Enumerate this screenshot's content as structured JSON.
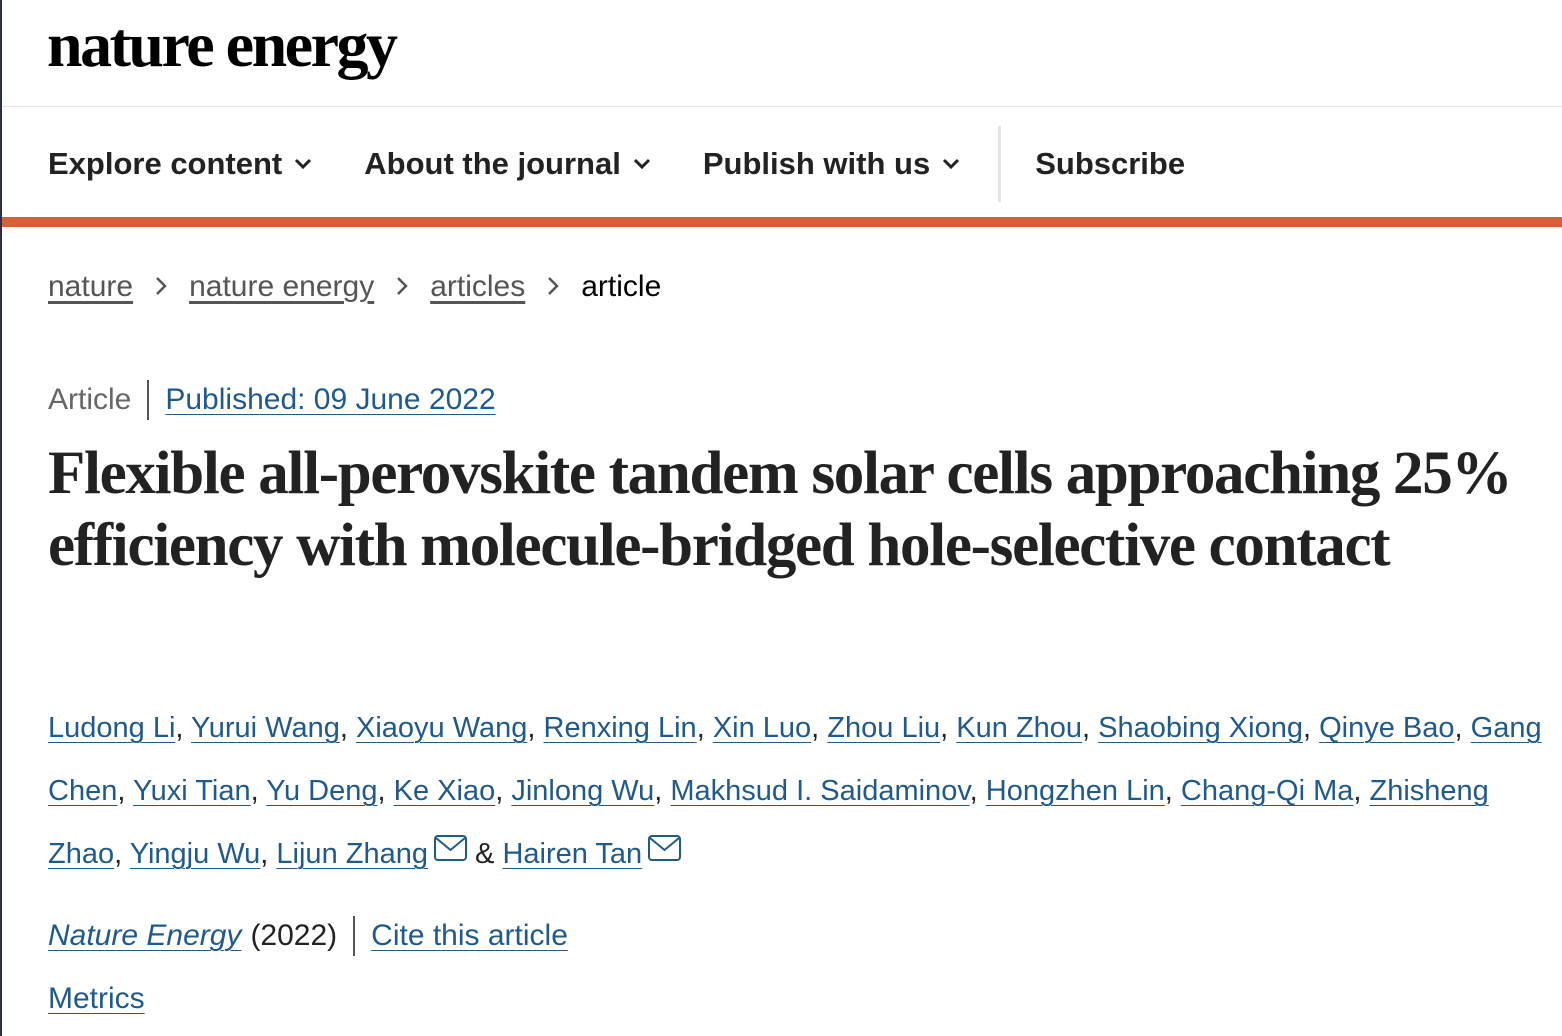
{
  "header": {
    "logo": "nature energy"
  },
  "nav": {
    "items": [
      {
        "label": "Explore content",
        "dropdown": true
      },
      {
        "label": "About the journal",
        "dropdown": true
      },
      {
        "label": "Publish with us",
        "dropdown": true
      },
      {
        "label": "Subscribe",
        "dropdown": false
      }
    ]
  },
  "breadcrumbs": [
    "nature",
    "nature energy",
    "articles",
    "article"
  ],
  "article": {
    "type": "Article",
    "published": "Published: 09 June 2022",
    "title": "Flexible all-perovskite tandem solar cells approaching 25% efficiency with molecule-bridged hole-selective contact",
    "author_separator": ",",
    "final_separator": "&",
    "authors": [
      {
        "name": "Ludong Li",
        "corresponding": false
      },
      {
        "name": "Yurui Wang",
        "corresponding": false
      },
      {
        "name": "Xiaoyu Wang",
        "corresponding": false
      },
      {
        "name": "Renxing Lin",
        "corresponding": false
      },
      {
        "name": "Xin Luo",
        "corresponding": false
      },
      {
        "name": "Zhou Liu",
        "corresponding": false
      },
      {
        "name": "Kun Zhou",
        "corresponding": false
      },
      {
        "name": "Shaobing Xiong",
        "corresponding": false
      },
      {
        "name": "Qinye Bao",
        "corresponding": false
      },
      {
        "name": "Gang Chen",
        "corresponding": false
      },
      {
        "name": "Yuxi Tian",
        "corresponding": false
      },
      {
        "name": "Yu Deng",
        "corresponding": false
      },
      {
        "name": "Ke Xiao",
        "corresponding": false
      },
      {
        "name": "Jinlong Wu",
        "corresponding": false
      },
      {
        "name": "Makhsud I. Saidaminov",
        "corresponding": false
      },
      {
        "name": "Hongzhen Lin",
        "corresponding": false
      },
      {
        "name": "Chang-Qi Ma",
        "corresponding": false
      },
      {
        "name": "Zhisheng Zhao",
        "corresponding": false
      },
      {
        "name": "Yingju Wu",
        "corresponding": false
      },
      {
        "name": "Lijun Zhang",
        "corresponding": true
      },
      {
        "name": "Hairen Tan",
        "corresponding": true
      }
    ],
    "citation": {
      "journal": "Nature Energy",
      "year": "(2022)",
      "cite": "Cite this article"
    },
    "metrics": "Metrics"
  }
}
